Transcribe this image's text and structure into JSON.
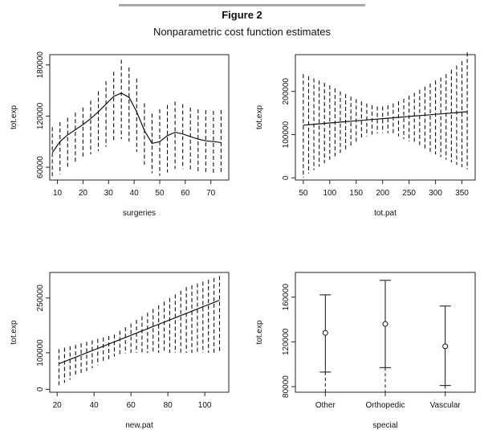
{
  "figure": {
    "label": "Figure 2",
    "title": "Nonparametric cost function estimates"
  },
  "chart_data": [
    {
      "type": "line",
      "band_type": "vertical-dashed-intervals",
      "xlabel": "surgeries",
      "ylabel": "tot.exp",
      "xlim": [
        7,
        77
      ],
      "ylim": [
        45000,
        192000
      ],
      "xticks": [
        10,
        20,
        30,
        40,
        50,
        60,
        70
      ],
      "yticks": [
        60000,
        120000,
        180000
      ],
      "x": [
        8,
        11,
        14,
        17,
        20,
        23,
        26,
        29,
        32,
        35,
        38,
        41,
        44,
        47,
        50,
        53,
        56,
        59,
        62,
        65,
        68,
        71,
        74
      ],
      "y": [
        77000,
        90000,
        98000,
        104000,
        110000,
        117000,
        125000,
        134000,
        143000,
        147000,
        142000,
        125000,
        103000,
        88000,
        90000,
        97000,
        101000,
        99000,
        96000,
        93000,
        91000,
        90000,
        89000
      ],
      "lower": [
        48000,
        52000,
        58000,
        64000,
        70000,
        75000,
        79000,
        84000,
        89000,
        93000,
        90000,
        78000,
        63000,
        53000,
        50000,
        54000,
        58000,
        58000,
        56000,
        55000,
        54000,
        53000,
        52000
      ],
      "upper": [
        107000,
        113000,
        118000,
        124000,
        130000,
        138000,
        149000,
        161000,
        172000,
        186000,
        177000,
        164000,
        135000,
        123000,
        128000,
        133000,
        137000,
        134000,
        130000,
        128000,
        127000,
        126000,
        127000
      ]
    },
    {
      "type": "line",
      "band_type": "vertical-dashed-intervals",
      "xlabel": "tot.pat",
      "ylabel": "tot.exp",
      "xlim": [
        35,
        375
      ],
      "ylim": [
        -5000,
        285000
      ],
      "xticks": [
        50,
        100,
        150,
        200,
        250,
        300,
        350
      ],
      "yticks": [
        0,
        100000,
        200000
      ],
      "x": [
        50,
        60,
        70,
        80,
        90,
        100,
        110,
        120,
        130,
        140,
        150,
        160,
        170,
        180,
        190,
        200,
        210,
        220,
        230,
        240,
        250,
        260,
        270,
        280,
        290,
        300,
        310,
        320,
        330,
        340,
        350,
        360
      ],
      "y": [
        122000,
        123000,
        124000,
        125000,
        126000,
        127000,
        128000,
        129000,
        130000,
        131000,
        132000,
        133000,
        134000,
        135000,
        136000,
        137000,
        138000,
        139000,
        140000,
        141000,
        142000,
        143000,
        144000,
        145000,
        146000,
        147000,
        148000,
        149000,
        150000,
        151000,
        152000,
        153000
      ],
      "lower": [
        0,
        10000,
        18000,
        26000,
        34000,
        42000,
        50000,
        58000,
        66000,
        74000,
        82000,
        90000,
        96000,
        100000,
        103000,
        104000,
        103000,
        100000,
        96000,
        90000,
        84000,
        78000,
        72000,
        66000,
        60000,
        54000,
        48000,
        42000,
        36000,
        30000,
        25000,
        20000
      ],
      "upper": [
        240000,
        235000,
        230000,
        225000,
        220000,
        214000,
        207000,
        200000,
        194000,
        188000,
        182000,
        177000,
        172000,
        168000,
        165000,
        165000,
        168000,
        172000,
        177000,
        183000,
        190000,
        197000,
        204000,
        211000,
        218000,
        225000,
        232000,
        240000,
        250000,
        260000,
        270000,
        290000
      ]
    },
    {
      "type": "line",
      "band_type": "vertical-dashed-intervals",
      "xlabel": "new.pat",
      "ylabel": "tot.exp",
      "xlim": [
        16,
        113
      ],
      "ylim": [
        -8000,
        320000
      ],
      "xticks": [
        20,
        40,
        60,
        80,
        100
      ],
      "yticks": [
        0,
        100000,
        250000
      ],
      "x": [
        21,
        24,
        27,
        30,
        33,
        36,
        39,
        42,
        45,
        48,
        51,
        54,
        57,
        60,
        63,
        66,
        69,
        72,
        75,
        78,
        81,
        84,
        87,
        90,
        93,
        96,
        99,
        102,
        105,
        108
      ],
      "y": [
        70000,
        76000,
        82000,
        88000,
        94000,
        100000,
        106000,
        112000,
        118000,
        124000,
        130000,
        136000,
        142000,
        148000,
        154000,
        160000,
        166000,
        172000,
        178000,
        184000,
        190000,
        196000,
        202000,
        208000,
        214000,
        220000,
        226000,
        232000,
        238000,
        244000
      ],
      "lower": [
        10000,
        18000,
        26000,
        34000,
        42000,
        50000,
        58000,
        66000,
        74000,
        82000,
        90000,
        95000,
        98000,
        100000,
        100000,
        100000,
        100000,
        100000,
        100000,
        100000,
        100000,
        100000,
        100000,
        100000,
        100000,
        100000,
        100000,
        100000,
        100000,
        100000
      ],
      "upper": [
        110000,
        114000,
        118000,
        122000,
        126000,
        130000,
        134000,
        138000,
        142000,
        146000,
        150000,
        160000,
        170000,
        180000,
        190000,
        200000,
        210000,
        220000,
        230000,
        240000,
        250000,
        260000,
        270000,
        280000,
        285000,
        290000,
        295000,
        300000,
        305000,
        310000
      ]
    },
    {
      "type": "errorbar",
      "xlabel": "special",
      "ylabel": "tot.exp",
      "categories": [
        "Other",
        "Orthopedic",
        "Vascular"
      ],
      "ylim": [
        75000,
        182000
      ],
      "yticks": [
        80000,
        120000,
        160000
      ],
      "y": [
        128000,
        136000,
        116000
      ],
      "lower": [
        93000,
        97000,
        81000
      ],
      "upper": [
        162000,
        175000,
        152000
      ]
    }
  ]
}
